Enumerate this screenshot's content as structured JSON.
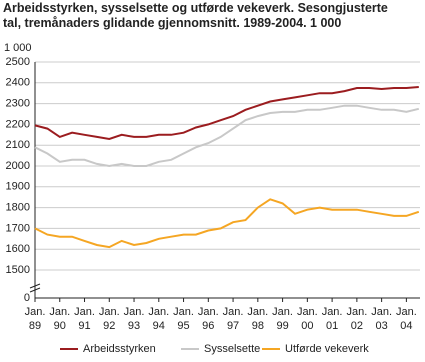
{
  "chart_data": {
    "type": "line",
    "title": "Arbeidsstyrken, sysselsette og utførde vekeverk. Sesongjusterte tal, tremånaders glidande gjennomsnitt. 1989-2004. 1 000",
    "y_unit": "1 000",
    "x": [
      1989,
      1989.5,
      1990,
      1990.5,
      1991,
      1991.5,
      1992,
      1992.5,
      1993,
      1993.5,
      1994,
      1994.5,
      1995,
      1995.5,
      1996,
      1996.5,
      1997,
      1997.5,
      1998,
      1998.5,
      1999,
      1999.5,
      2000,
      2000.5,
      2001,
      2001.5,
      2002,
      2002.5,
      2003,
      2003.5,
      2004,
      2004.5
    ],
    "series": [
      {
        "name": "Arbeidsstyrken",
        "color": "#9b1c1f",
        "values": [
          2195,
          2180,
          2140,
          2160,
          2150,
          2140,
          2130,
          2150,
          2140,
          2140,
          2150,
          2150,
          2160,
          2185,
          2200,
          2220,
          2240,
          2270,
          2290,
          2310,
          2320,
          2330,
          2340,
          2350,
          2350,
          2360,
          2375,
          2375,
          2370,
          2375,
          2375,
          2380
        ]
      },
      {
        "name": "Sysselsette",
        "color": "#c8c8c8",
        "values": [
          2090,
          2060,
          2020,
          2030,
          2030,
          2010,
          2000,
          2010,
          2000,
          2000,
          2020,
          2030,
          2060,
          2090,
          2110,
          2140,
          2180,
          2220,
          2240,
          2255,
          2260,
          2260,
          2270,
          2270,
          2280,
          2290,
          2290,
          2280,
          2270,
          2270,
          2260,
          2275
        ]
      },
      {
        "name": "Utførde vekeverk",
        "color": "#f5a623",
        "values": [
          1700,
          1670,
          1660,
          1660,
          1640,
          1620,
          1610,
          1640,
          1620,
          1630,
          1650,
          1660,
          1670,
          1670,
          1690,
          1700,
          1730,
          1740,
          1800,
          1840,
          1820,
          1770,
          1790,
          1800,
          1790,
          1790,
          1790,
          1780,
          1770,
          1760,
          1760,
          1780
        ]
      }
    ],
    "xlim": [
      1989,
      2004.55
    ],
    "xticks": [
      {
        "value": 1989,
        "label": "Jan.\n89"
      },
      {
        "value": 1990,
        "label": "Jan.\n90"
      },
      {
        "value": 1991,
        "label": "Jan.\n91"
      },
      {
        "value": 1992,
        "label": "Jan.\n92"
      },
      {
        "value": 1993,
        "label": "Jan.\n93"
      },
      {
        "value": 1994,
        "label": "Jan.\n94"
      },
      {
        "value": 1995,
        "label": "Jan.\n95"
      },
      {
        "value": 1996,
        "label": "Jan.\n96"
      },
      {
        "value": 1997,
        "label": "Jan.\n97"
      },
      {
        "value": 1998,
        "label": "Jan.\n98"
      },
      {
        "value": 1999,
        "label": "Jan.\n99"
      },
      {
        "value": 2000,
        "label": "Jan.\n00"
      },
      {
        "value": 2001,
        "label": "Jan.\n01"
      },
      {
        "value": 2002,
        "label": "Jan.\n02"
      },
      {
        "value": 2003,
        "label": "Jan.\n03"
      },
      {
        "value": 2004,
        "label": "Jan.\n04"
      }
    ],
    "ylim": [
      0,
      2500
    ],
    "y_break": [
      0,
      1500
    ],
    "yticks": [
      0,
      1500,
      1600,
      1700,
      1800,
      1900,
      2000,
      2100,
      2200,
      2300,
      2400,
      2500
    ],
    "grid": true,
    "legend": "bottom"
  }
}
